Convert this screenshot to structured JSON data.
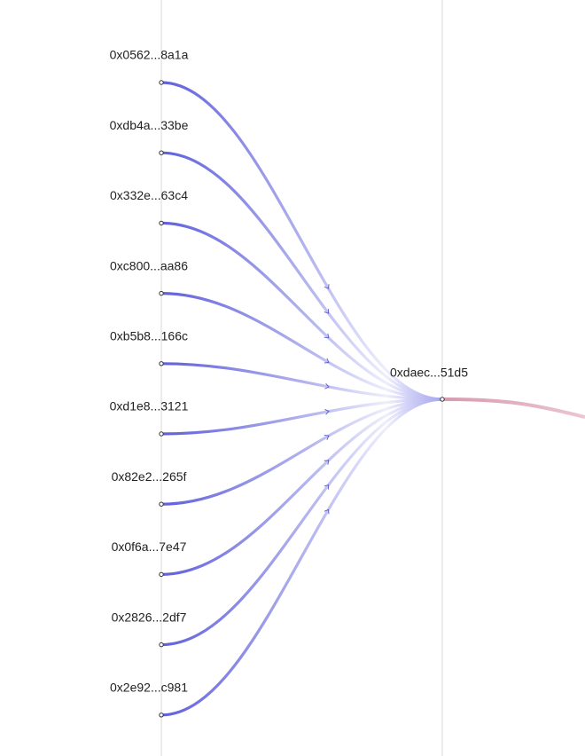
{
  "nodes": {
    "sources": [
      "0x0562...8a1a",
      "0xdb4a...33be",
      "0x332e...63c4",
      "0xc800...aa86",
      "0xb5b8...166c",
      "0xd1e8...3121",
      "0x82e2...265f",
      "0x0f6a...7e47",
      "0x2826...2df7",
      "0x2e92...c981"
    ],
    "target": "0xdaec...51d5"
  }
}
